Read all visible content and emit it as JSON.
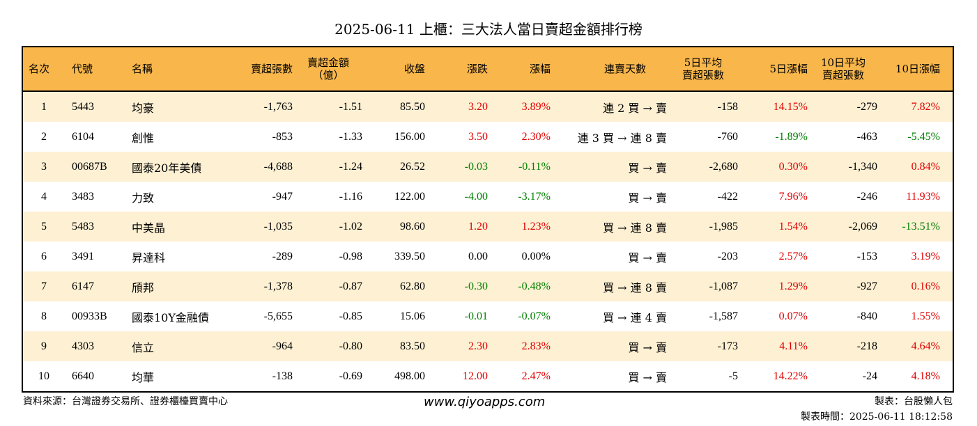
{
  "title": "2025-06-11 上櫃：三大法人當日賣超金額排行榜",
  "headers": {
    "rank": "名次",
    "code": "代號",
    "name": "名稱",
    "sell_shares": "賣超張數",
    "sell_amount_l1": "賣超金額",
    "sell_amount_l2": "（億）",
    "close": "收盤",
    "change": "漲跌",
    "pct": "漲幅",
    "streak": "連賣天數",
    "avg5_l1": "5日平均",
    "avg5_l2": "賣超張數",
    "pct5": "5日漲幅",
    "avg10_l1": "10日平均",
    "avg10_l2": "賣超張數",
    "pct10": "10日漲幅"
  },
  "rows": [
    {
      "rank": "1",
      "code": "5443",
      "name": "均豪",
      "sell_shares": "-1,763",
      "sell_amount": "-1.51",
      "close": "85.50",
      "change": "3.20",
      "change_dir": "up",
      "pct": "3.89%",
      "pct_dir": "up",
      "streak": "連 2 買 → 賣",
      "avg5": "-158",
      "pct5": "14.15%",
      "pct5_dir": "up",
      "avg10": "-279",
      "pct10": "7.82%",
      "pct10_dir": "up"
    },
    {
      "rank": "2",
      "code": "6104",
      "name": "創惟",
      "sell_shares": "-853",
      "sell_amount": "-1.33",
      "close": "156.00",
      "change": "3.50",
      "change_dir": "up",
      "pct": "2.30%",
      "pct_dir": "up",
      "streak": "連 3 買 → 連 8 賣",
      "avg5": "-760",
      "pct5": "-1.89%",
      "pct5_dir": "down",
      "avg10": "-463",
      "pct10": "-5.45%",
      "pct10_dir": "down"
    },
    {
      "rank": "3",
      "code": "00687B",
      "name": "國泰20年美債",
      "sell_shares": "-4,688",
      "sell_amount": "-1.24",
      "close": "26.52",
      "change": "-0.03",
      "change_dir": "down",
      "pct": "-0.11%",
      "pct_dir": "down",
      "streak": "買 → 賣",
      "avg5": "-2,680",
      "pct5": "0.30%",
      "pct5_dir": "up",
      "avg10": "-1,340",
      "pct10": "0.84%",
      "pct10_dir": "up"
    },
    {
      "rank": "4",
      "code": "3483",
      "name": "力致",
      "sell_shares": "-947",
      "sell_amount": "-1.16",
      "close": "122.00",
      "change": "-4.00",
      "change_dir": "down",
      "pct": "-3.17%",
      "pct_dir": "down",
      "streak": "買 → 賣",
      "avg5": "-422",
      "pct5": "7.96%",
      "pct5_dir": "up",
      "avg10": "-246",
      "pct10": "11.93%",
      "pct10_dir": "up"
    },
    {
      "rank": "5",
      "code": "5483",
      "name": "中美晶",
      "sell_shares": "-1,035",
      "sell_amount": "-1.02",
      "close": "98.60",
      "change": "1.20",
      "change_dir": "up",
      "pct": "1.23%",
      "pct_dir": "up",
      "streak": "買 → 連 8 賣",
      "avg5": "-1,985",
      "pct5": "1.54%",
      "pct5_dir": "up",
      "avg10": "-2,069",
      "pct10": "-13.51%",
      "pct10_dir": "down"
    },
    {
      "rank": "6",
      "code": "3491",
      "name": "昇達科",
      "sell_shares": "-289",
      "sell_amount": "-0.98",
      "close": "339.50",
      "change": "0.00",
      "change_dir": "flat",
      "pct": "0.00%",
      "pct_dir": "flat",
      "streak": "買 → 賣",
      "avg5": "-203",
      "pct5": "2.57%",
      "pct5_dir": "up",
      "avg10": "-153",
      "pct10": "3.19%",
      "pct10_dir": "up"
    },
    {
      "rank": "7",
      "code": "6147",
      "name": "頎邦",
      "sell_shares": "-1,378",
      "sell_amount": "-0.87",
      "close": "62.80",
      "change": "-0.30",
      "change_dir": "down",
      "pct": "-0.48%",
      "pct_dir": "down",
      "streak": "買 → 連 8 賣",
      "avg5": "-1,087",
      "pct5": "1.29%",
      "pct5_dir": "up",
      "avg10": "-927",
      "pct10": "0.16%",
      "pct10_dir": "up"
    },
    {
      "rank": "8",
      "code": "00933B",
      "name": "國泰10Y金融債",
      "sell_shares": "-5,655",
      "sell_amount": "-0.85",
      "close": "15.06",
      "change": "-0.01",
      "change_dir": "down",
      "pct": "-0.07%",
      "pct_dir": "down",
      "streak": "買 → 連 4 賣",
      "avg5": "-1,587",
      "pct5": "0.07%",
      "pct5_dir": "up",
      "avg10": "-840",
      "pct10": "1.55%",
      "pct10_dir": "up"
    },
    {
      "rank": "9",
      "code": "4303",
      "name": "信立",
      "sell_shares": "-964",
      "sell_amount": "-0.80",
      "close": "83.50",
      "change": "2.30",
      "change_dir": "up",
      "pct": "2.83%",
      "pct_dir": "up",
      "streak": "買 → 賣",
      "avg5": "-173",
      "pct5": "4.11%",
      "pct5_dir": "up",
      "avg10": "-218",
      "pct10": "4.64%",
      "pct10_dir": "up"
    },
    {
      "rank": "10",
      "code": "6640",
      "name": "均華",
      "sell_shares": "-138",
      "sell_amount": "-0.69",
      "close": "498.00",
      "change": "12.00",
      "change_dir": "up",
      "pct": "2.47%",
      "pct_dir": "up",
      "streak": "買 → 賣",
      "avg5": "-5",
      "pct5": "14.22%",
      "pct5_dir": "up",
      "avg10": "-24",
      "pct10": "4.18%",
      "pct10_dir": "up"
    }
  ],
  "colors": {
    "up": "#e00000",
    "down": "#008000",
    "header_bg": "#f8b64b",
    "odd_row_bg": "#fdf0d3"
  },
  "footer": {
    "source": "資料來源：台灣證券交易所、證券櫃檯買賣中心",
    "website": "www.qiyoapps.com",
    "maker": "製表：台股懶人包",
    "made_time": "製表時間：2025-06-11 18:12:58"
  }
}
